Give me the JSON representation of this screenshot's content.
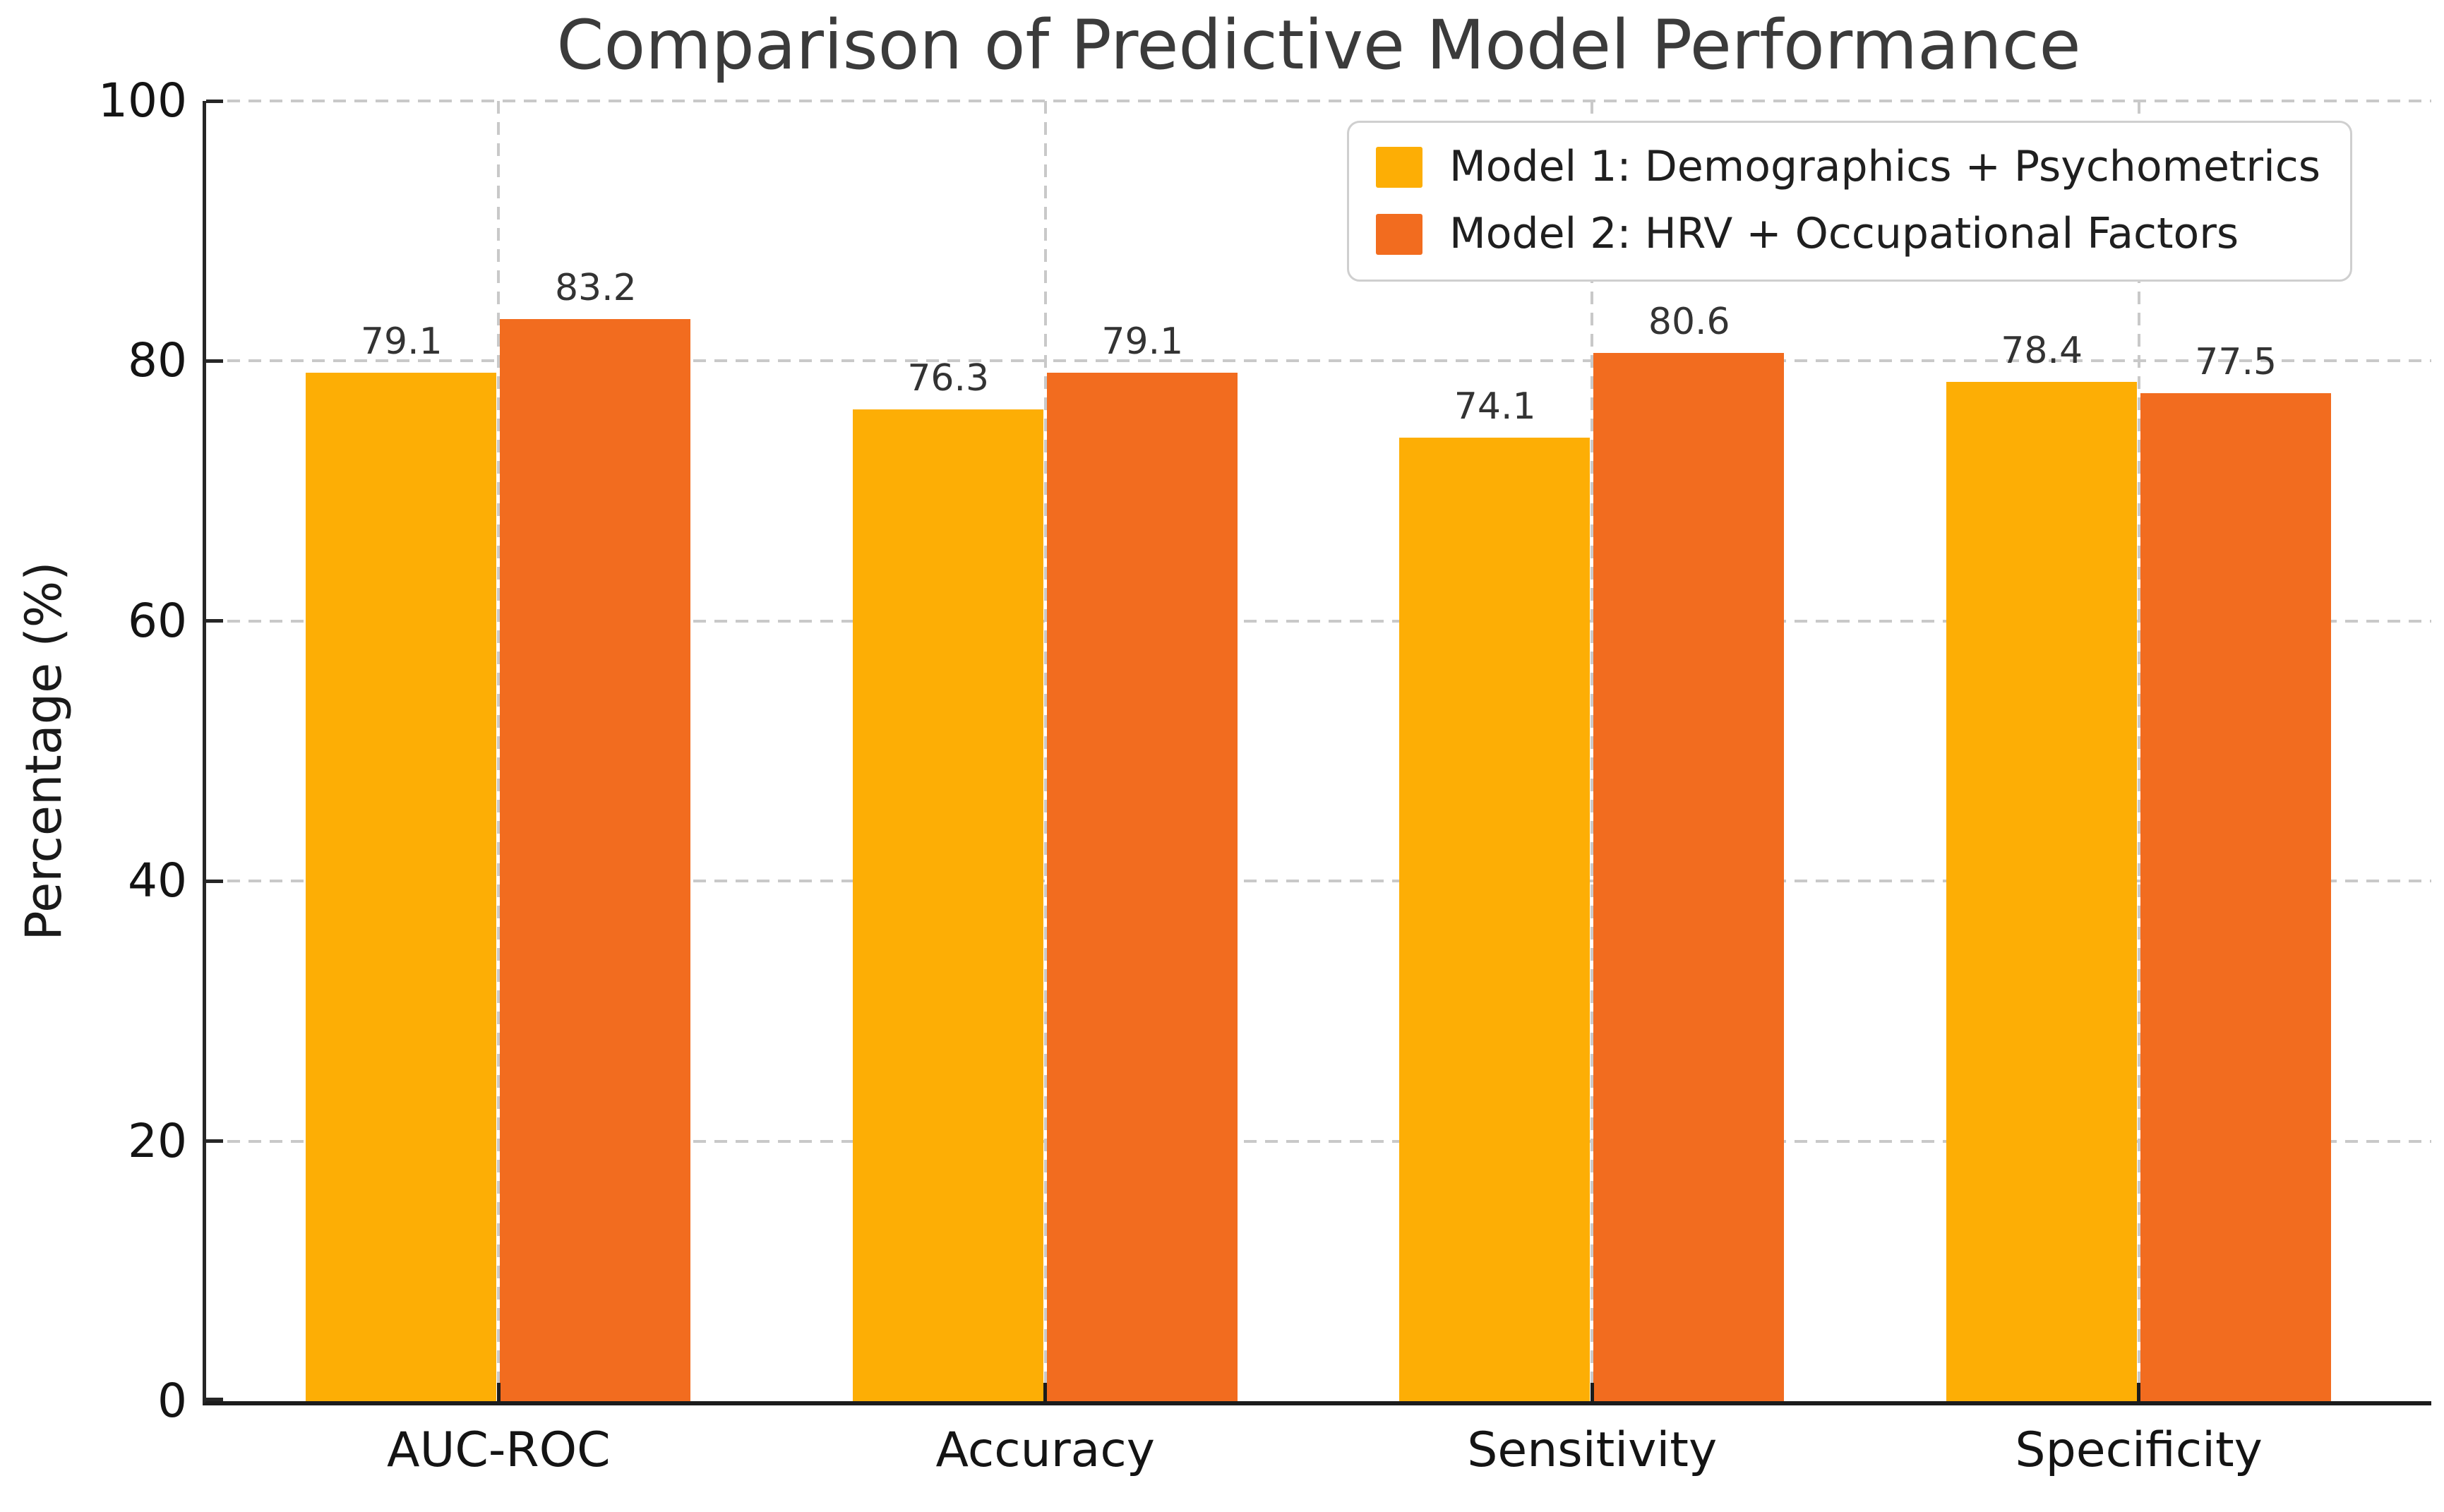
{
  "chart_data": {
    "type": "bar",
    "title": "Comparison of Predictive Model Performance",
    "xlabel": "",
    "ylabel": "Percentage (%)",
    "categories": [
      "AUC-ROC",
      "Accuracy",
      "Sensitivity",
      "Specificity"
    ],
    "series": [
      {
        "name": "Model 1: Demographics + Psychometrics",
        "color": "#FDAE05",
        "values": [
          79.1,
          76.3,
          74.1,
          78.4
        ]
      },
      {
        "name": "Model 2: HRV + Occupational Factors",
        "color": "#F26C1F",
        "values": [
          83.2,
          79.1,
          80.6,
          77.5
        ]
      }
    ],
    "ylim": [
      0,
      100
    ],
    "yticks": [
      0,
      20,
      40,
      60,
      80,
      100
    ],
    "grid": "dashed, horizontal and vertical",
    "legend_position": "upper right",
    "bar_value_labels": true,
    "bar_width_data_units": 0.35
  },
  "style": {
    "background": "#ffffff",
    "grid_color": "#c9c9c9",
    "spine_color": "#262626",
    "title_color": "#3b3b3b",
    "text_color": "#141414",
    "legend_border_color": "#cfcfcf"
  }
}
